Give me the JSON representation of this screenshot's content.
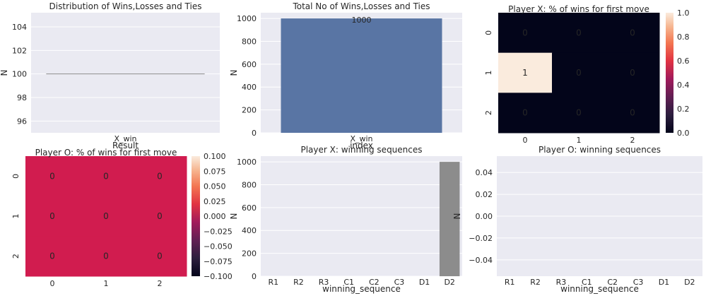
{
  "chart_data": [
    {
      "type": "line",
      "title": "Distribution of Wins,Losses and Ties",
      "xlabel": "Result",
      "ylabel": "N",
      "categories": [
        "X_win"
      ],
      "values": [
        100
      ],
      "ylim": [
        95,
        105.2
      ],
      "yticks": [
        96,
        98,
        100,
        102,
        104
      ],
      "grid": true
    },
    {
      "type": "bar",
      "title": "Total No of Wins,Losses and Ties",
      "xlabel": "index",
      "ylabel": "N",
      "categories": [
        "X_win"
      ],
      "values": [
        1000
      ],
      "data_labels": [
        "1000"
      ],
      "ylim": [
        0,
        1050
      ],
      "yticks": [
        0,
        200,
        400,
        600,
        800,
        1000
      ],
      "color": "#5975a4",
      "grid": true
    },
    {
      "type": "heatmap",
      "title": "Player X: % of wins for first move",
      "rows": [
        "0",
        "1",
        "2"
      ],
      "cols": [
        "0",
        "1",
        "2"
      ],
      "values": [
        [
          0,
          0,
          0
        ],
        [
          1,
          0,
          0
        ],
        [
          0,
          0,
          0
        ]
      ],
      "colorbar": {
        "min": 0,
        "max": 1,
        "ticks": [
          "0.0",
          "0.2",
          "0.4",
          "0.6",
          "0.8",
          "1.0"
        ]
      }
    },
    {
      "type": "heatmap",
      "title": "Player O: % of wins for first move",
      "rows": [
        "0",
        "1",
        "2"
      ],
      "cols": [
        "0",
        "1",
        "2"
      ],
      "values": [
        [
          0,
          0,
          0
        ],
        [
          0,
          0,
          0
        ],
        [
          0,
          0,
          0
        ]
      ],
      "cell_color": "#d11c4f",
      "colorbar": {
        "min": -0.1,
        "max": 0.1,
        "ticks": [
          "−0.100",
          "−0.075",
          "−0.050",
          "−0.025",
          "0.000",
          "0.025",
          "0.050",
          "0.075",
          "0.100"
        ]
      }
    },
    {
      "type": "bar",
      "title": "Player X: winning sequences",
      "xlabel": "winning_sequence",
      "ylabel": "N",
      "categories": [
        "R1",
        "R2",
        "R3",
        "C1",
        "C2",
        "C3",
        "D1",
        "D2"
      ],
      "values": [
        0,
        0,
        0,
        0,
        0,
        0,
        0,
        1000
      ],
      "ylim": [
        0,
        1050
      ],
      "yticks": [
        0,
        200,
        400,
        600,
        800,
        1000
      ],
      "color": "#8c8c8c",
      "grid": true
    },
    {
      "type": "bar",
      "title": "Player O: winning sequences",
      "xlabel": "winning_sequence",
      "ylabel": "N",
      "categories": [
        "R1",
        "R2",
        "R3",
        "C1",
        "C2",
        "C3",
        "D1",
        "D2"
      ],
      "values": [
        0,
        0,
        0,
        0,
        0,
        0,
        0,
        0
      ],
      "ylim": [
        -0.055,
        0.055
      ],
      "yticks": [
        "−0.04",
        "−0.02",
        "0.00",
        "0.02",
        "0.04"
      ],
      "grid": true
    }
  ]
}
